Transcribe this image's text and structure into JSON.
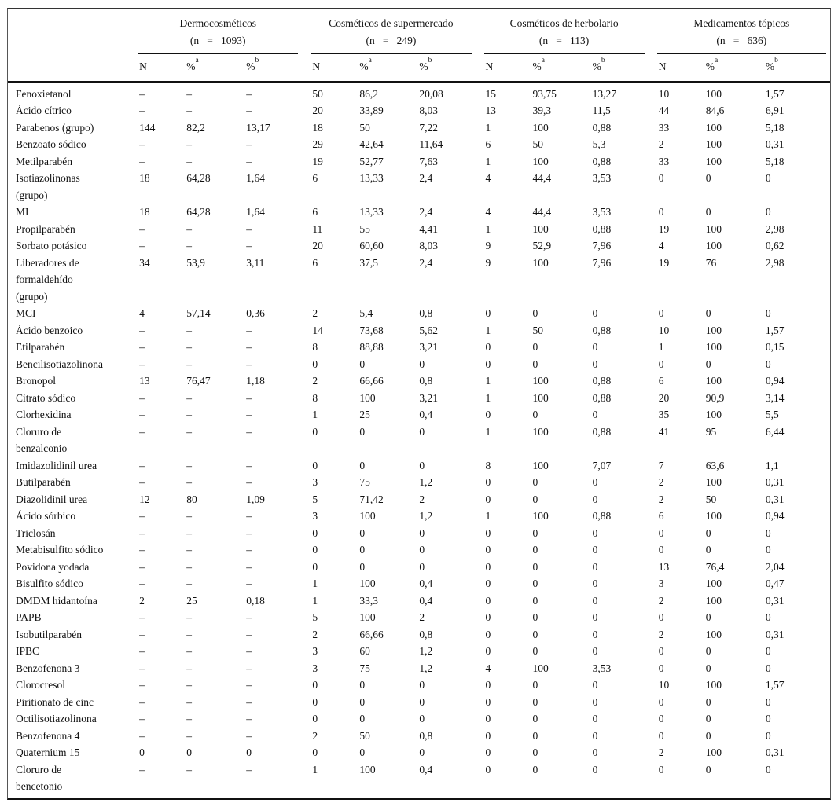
{
  "table": {
    "groups": [
      {
        "name": "Dermocosméticos",
        "n_label": "(n   =   1093)"
      },
      {
        "name": "Cosméticos de supermercado",
        "n_label": "(n   =   249)"
      },
      {
        "name": "Cosméticos de herbolario",
        "n_label": "(n   =   113)"
      },
      {
        "name": "Medicamentos tópicos",
        "n_label": "(n   =   636)"
      }
    ],
    "subheader": {
      "n": "N",
      "pct": "%",
      "sup_a": "a",
      "sup_b": "b"
    },
    "rows": [
      {
        "label": "Fenoxietanol",
        "values": [
          "–",
          "–",
          "–",
          "50",
          "86,2",
          "20,08",
          "15",
          "93,75",
          "13,27",
          "10",
          "100",
          "1,57"
        ]
      },
      {
        "label": "Ácido cítrico",
        "values": [
          "–",
          "–",
          "–",
          "20",
          "33,89",
          "8,03",
          "13",
          "39,3",
          "11,5",
          "44",
          "84,6",
          "6,91"
        ]
      },
      {
        "label": "Parabenos (grupo)",
        "values": [
          "144",
          "82,2",
          "13,17",
          "18",
          "50",
          "7,22",
          "1",
          "100",
          "0,88",
          "33",
          "100",
          "5,18"
        ]
      },
      {
        "label": "Benzoato sódico",
        "values": [
          "–",
          "–",
          "–",
          "29",
          "42,64",
          "11,64",
          "6",
          "50",
          "5,3",
          "2",
          "100",
          "0,31"
        ]
      },
      {
        "label": "Metilparabén",
        "values": [
          "–",
          "–",
          "–",
          "19",
          "52,77",
          "7,63",
          "1",
          "100",
          "0,88",
          "33",
          "100",
          "5,18"
        ]
      },
      {
        "label": "Isotiazolinonas\n(grupo)",
        "values": [
          "18",
          "64,28",
          "1,64",
          "6",
          "13,33",
          "2,4",
          "4",
          "44,4",
          "3,53",
          "0",
          "0",
          "0"
        ]
      },
      {
        "label": "MI",
        "values": [
          "18",
          "64,28",
          "1,64",
          "6",
          "13,33",
          "2,4",
          "4",
          "44,4",
          "3,53",
          "0",
          "0",
          "0"
        ]
      },
      {
        "label": "Propilparabén",
        "values": [
          "–",
          "–",
          "–",
          "11",
          "55",
          "4,41",
          "1",
          "100",
          "0,88",
          "19",
          "100",
          "2,98"
        ]
      },
      {
        "label": "Sorbato potásico",
        "values": [
          "–",
          "–",
          "–",
          "20",
          "60,60",
          "8,03",
          "9",
          "52,9",
          "7,96",
          "4",
          "100",
          "0,62"
        ]
      },
      {
        "label": "Liberadores de\nformaldehído\n(grupo)",
        "values": [
          "34",
          "53,9",
          "3,11",
          "6",
          "37,5",
          "2,4",
          "9",
          "100",
          "7,96",
          "19",
          "76",
          "2,98"
        ]
      },
      {
        "label": "MCI",
        "values": [
          "4",
          "57,14",
          "0,36",
          "2",
          "5,4",
          "0,8",
          "0",
          "0",
          "0",
          "0",
          "0",
          "0"
        ]
      },
      {
        "label": "Ácido benzoico",
        "values": [
          "–",
          "–",
          "–",
          "14",
          "73,68",
          "5,62",
          "1",
          "50",
          "0,88",
          "10",
          "100",
          "1,57"
        ]
      },
      {
        "label": "Etilparabén",
        "values": [
          "–",
          "–",
          "–",
          "8",
          "88,88",
          "3,21",
          "0",
          "0",
          "0",
          "1",
          "100",
          "0,15"
        ]
      },
      {
        "label": "Bencilisotiazolinona",
        "values": [
          "–",
          "–",
          "–",
          "0",
          "0",
          "0",
          "0",
          "0",
          "0",
          "0",
          "0",
          "0"
        ]
      },
      {
        "label": "Bronopol",
        "values": [
          "13",
          "76,47",
          "1,18",
          "2",
          "66,66",
          "0,8",
          "1",
          "100",
          "0,88",
          "6",
          "100",
          "0,94"
        ]
      },
      {
        "label": "Citrato sódico",
        "values": [
          "–",
          "–",
          "–",
          "8",
          "100",
          "3,21",
          "1",
          "100",
          "0,88",
          "20",
          "90,9",
          "3,14"
        ]
      },
      {
        "label": "Clorhexidina",
        "values": [
          "–",
          "–",
          "–",
          "1",
          "25",
          "0,4",
          "0",
          "0",
          "0",
          "35",
          "100",
          "5,5"
        ]
      },
      {
        "label": "Cloruro de\nbenzalconio",
        "values": [
          "–",
          "–",
          "–",
          "0",
          "0",
          "0",
          "1",
          "100",
          "0,88",
          "41",
          "95",
          "6,44"
        ]
      },
      {
        "label": "Imidazolidinil urea",
        "values": [
          "–",
          "–",
          "–",
          "0",
          "0",
          "0",
          "8",
          "100",
          "7,07",
          "7",
          "63,6",
          "1,1"
        ]
      },
      {
        "label": "Butilparabén",
        "values": [
          "–",
          "–",
          "–",
          "3",
          "75",
          "1,2",
          "0",
          "0",
          "0",
          "2",
          "100",
          "0,31"
        ]
      },
      {
        "label": "Diazolidinil urea",
        "values": [
          "12",
          "80",
          "1,09",
          "5",
          "71,42",
          "2",
          "0",
          "0",
          "0",
          "2",
          "50",
          "0,31"
        ]
      },
      {
        "label": "Ácido sórbico",
        "values": [
          "–",
          "–",
          "–",
          "3",
          "100",
          "1,2",
          "1",
          "100",
          "0,88",
          "6",
          "100",
          "0,94"
        ]
      },
      {
        "label": "Triclosán",
        "values": [
          "–",
          "–",
          "–",
          "0",
          "0",
          "0",
          "0",
          "0",
          "0",
          "0",
          "0",
          "0"
        ]
      },
      {
        "label": "Metabisulfito sódico",
        "values": [
          "–",
          "–",
          "–",
          "0",
          "0",
          "0",
          "0",
          "0",
          "0",
          "0",
          "0",
          "0"
        ]
      },
      {
        "label": "Povidona yodada",
        "values": [
          "–",
          "–",
          "–",
          "0",
          "0",
          "0",
          "0",
          "0",
          "0",
          "13",
          "76,4",
          "2,04"
        ]
      },
      {
        "label": "Bisulfito sódico",
        "values": [
          "–",
          "–",
          "–",
          "1",
          "100",
          "0,4",
          "0",
          "0",
          "0",
          "3",
          "100",
          "0,47"
        ]
      },
      {
        "label": "DMDM hidantoína",
        "values": [
          "2",
          "25",
          "0,18",
          "1",
          "33,3",
          "0,4",
          "0",
          "0",
          "0",
          "2",
          "100",
          "0,31"
        ]
      },
      {
        "label": "PAPB",
        "values": [
          "–",
          "–",
          "–",
          "5",
          "100",
          "2",
          "0",
          "0",
          "0",
          "0",
          "0",
          "0"
        ]
      },
      {
        "label": "Isobutilparabén",
        "values": [
          "–",
          "–",
          "–",
          "2",
          "66,66",
          "0,8",
          "0",
          "0",
          "0",
          "2",
          "100",
          "0,31"
        ]
      },
      {
        "label": "IPBC",
        "values": [
          "–",
          "–",
          "–",
          "3",
          "60",
          "1,2",
          "0",
          "0",
          "0",
          "0",
          "0",
          "0"
        ]
      },
      {
        "label": "Benzofenona 3",
        "values": [
          "–",
          "–",
          "–",
          "3",
          "75",
          "1,2",
          "4",
          "100",
          "3,53",
          "0",
          "0",
          "0"
        ]
      },
      {
        "label": "Clorocresol",
        "values": [
          "–",
          "–",
          "–",
          "0",
          "0",
          "0",
          "0",
          "0",
          "0",
          "10",
          "100",
          "1,57"
        ]
      },
      {
        "label": "Piritionato de cinc",
        "values": [
          "–",
          "–",
          "–",
          "0",
          "0",
          "0",
          "0",
          "0",
          "0",
          "0",
          "0",
          "0"
        ]
      },
      {
        "label": "Octilisotiazolinona",
        "values": [
          "–",
          "–",
          "–",
          "0",
          "0",
          "0",
          "0",
          "0",
          "0",
          "0",
          "0",
          "0"
        ]
      },
      {
        "label": "Benzofenona 4",
        "values": [
          "–",
          "–",
          "–",
          "2",
          "50",
          "0,8",
          "0",
          "0",
          "0",
          "0",
          "0",
          "0"
        ]
      },
      {
        "label": "Quaternium 15",
        "values": [
          "0",
          "0",
          "0",
          "0",
          "0",
          "0",
          "0",
          "0",
          "0",
          "2",
          "100",
          "0,31"
        ]
      },
      {
        "label": "Cloruro de\nbencetonio",
        "values": [
          "–",
          "–",
          "–",
          "1",
          "100",
          "0,4",
          "0",
          "0",
          "0",
          "0",
          "0",
          "0"
        ]
      }
    ]
  }
}
